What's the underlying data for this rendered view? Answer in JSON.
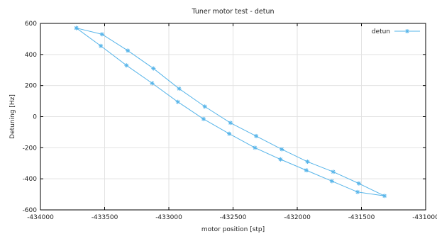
{
  "chart_data": {
    "type": "line",
    "title": "Tuner motor test - detun",
    "xlabel": "motor position [stp]",
    "ylabel": "Detuning [Hz]",
    "xlim": [
      -434000,
      -431000
    ],
    "ylim": [
      -600,
      600
    ],
    "xticks": [
      -434000,
      -433500,
      -433000,
      -432500,
      -432000,
      -431500,
      -431000
    ],
    "yticks": [
      -600,
      -400,
      -200,
      0,
      200,
      400,
      600
    ],
    "grid": true,
    "legend_position": "top-right",
    "series": [
      {
        "name": "detun",
        "color": "#56b4e9",
        "marker": "asterisk",
        "x": [
          -433720,
          -433530,
          -433330,
          -433130,
          -432930,
          -432730,
          -432530,
          -432330,
          -432130,
          -431930,
          -431730,
          -431530,
          -431320,
          -431520,
          -431720,
          -431920,
          -432120,
          -432320,
          -432520,
          -432720,
          -432920,
          -433120,
          -433320,
          -433520,
          -433720
        ],
        "y": [
          570,
          455,
          330,
          215,
          95,
          -15,
          -110,
          -200,
          -275,
          -345,
          -415,
          -485,
          -510,
          -430,
          -355,
          -290,
          -210,
          -125,
          -40,
          65,
          180,
          310,
          425,
          530,
          570
        ]
      }
    ]
  }
}
